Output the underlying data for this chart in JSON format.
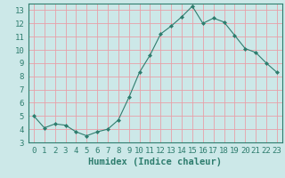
{
  "x": [
    0,
    1,
    2,
    3,
    4,
    5,
    6,
    7,
    8,
    9,
    10,
    11,
    12,
    13,
    14,
    15,
    16,
    17,
    18,
    19,
    20,
    21,
    22,
    23
  ],
  "y": [
    5.0,
    4.1,
    4.4,
    4.3,
    3.8,
    3.5,
    3.8,
    4.0,
    4.7,
    6.4,
    8.3,
    9.6,
    11.2,
    11.8,
    12.5,
    13.3,
    12.0,
    12.4,
    12.1,
    11.1,
    10.1,
    9.8,
    9.0,
    8.3
  ],
  "line_color": "#2e7d6e",
  "marker": "D",
  "marker_size": 2.0,
  "bg_color": "#cce8e8",
  "grid_major_color": "#e8a0a8",
  "grid_minor_color": "#ddc8c8",
  "axis_color": "#2e7d6e",
  "xlabel": "Humidex (Indice chaleur)",
  "xlabel_fontsize": 7.5,
  "tick_fontsize": 6.5,
  "xlim": [
    -0.5,
    23.5
  ],
  "ylim": [
    3,
    13.5
  ],
  "yticks": [
    3,
    4,
    5,
    6,
    7,
    8,
    9,
    10,
    11,
    12,
    13
  ],
  "xticks": [
    0,
    1,
    2,
    3,
    4,
    5,
    6,
    7,
    8,
    9,
    10,
    11,
    12,
    13,
    14,
    15,
    16,
    17,
    18,
    19,
    20,
    21,
    22,
    23
  ]
}
